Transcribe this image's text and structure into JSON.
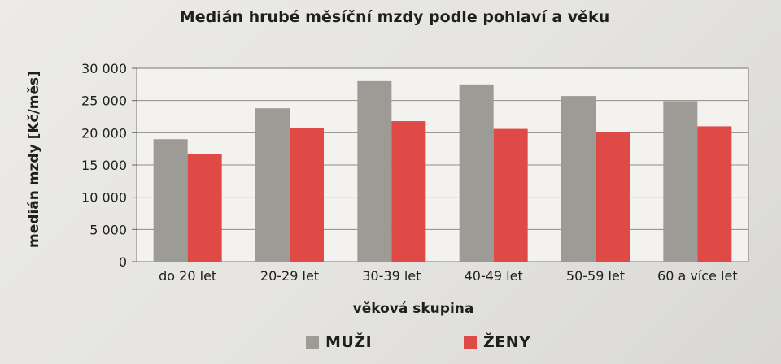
{
  "chart_data": {
    "type": "bar",
    "title": "Medián hrubé měsíční mzdy podle pohlaví a věku",
    "xlabel": "věková skupina",
    "ylabel": "medián mzdy [Kč/měs]",
    "categories": [
      "do 20 let",
      "20-29 let",
      "30-39 let",
      "40-49 let",
      "50-59 let",
      "60 a více let"
    ],
    "series": [
      {
        "name": "MUŽI",
        "color": "#9c9b96",
        "values": [
          19000,
          23800,
          28000,
          27500,
          25700,
          24900
        ]
      },
      {
        "name": "ŽENY",
        "color": "#df4a47",
        "values": [
          16700,
          20700,
          21800,
          20600,
          20100,
          21000
        ]
      }
    ],
    "ylim": [
      0,
      30000
    ],
    "yticks": [
      0,
      5000,
      10000,
      15000,
      20000,
      25000,
      30000
    ],
    "ytick_labels": [
      "0",
      "5 000",
      "10 000",
      "15 000",
      "20 000",
      "25 000",
      "30 000"
    ],
    "grid": true,
    "legend_position": "bottom"
  }
}
